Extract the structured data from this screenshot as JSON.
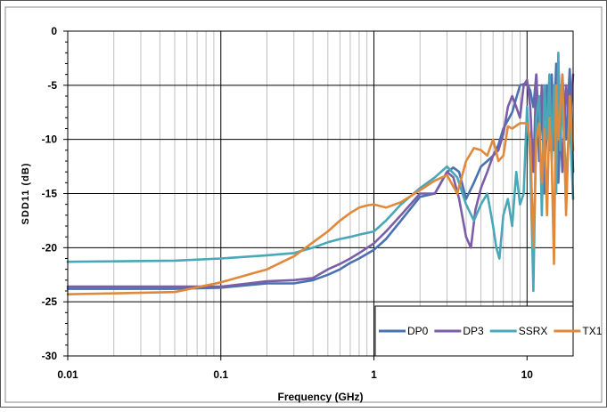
{
  "chart_data": {
    "type": "line",
    "title": "",
    "xlabel": "Frequency (GHz)",
    "ylabel": "SDD11 (dB)",
    "xscale": "log",
    "xlim": [
      0.01,
      20
    ],
    "ylim": [
      -30,
      0
    ],
    "x_ticks": [
      {
        "value": 0.01,
        "label": "0.01"
      },
      {
        "value": 0.1,
        "label": "0.1"
      },
      {
        "value": 1,
        "label": "1"
      },
      {
        "value": 10,
        "label": "10"
      }
    ],
    "y_ticks": [
      {
        "value": 0,
        "label": "0"
      },
      {
        "value": -5,
        "label": "-5"
      },
      {
        "value": -10,
        "label": "-10"
      },
      {
        "value": -15,
        "label": "-15"
      },
      {
        "value": -20,
        "label": "-20"
      },
      {
        "value": -25,
        "label": "-25"
      },
      {
        "value": -30,
        "label": "-30"
      }
    ],
    "grid": true,
    "legend_position": "bottom-right",
    "series": [
      {
        "name": "DP0",
        "color": "#4a72b0",
        "x": [
          0.01,
          0.05,
          0.1,
          0.2,
          0.3,
          0.4,
          0.5,
          0.6,
          0.7,
          0.8,
          1.0,
          1.2,
          1.5,
          2.0,
          2.5,
          3.0,
          3.3,
          3.6,
          4.0,
          4.5,
          5.0,
          5.5,
          6.0,
          6.5,
          7.0,
          8.0,
          9.0,
          10.0,
          10.5,
          11.0,
          11.5,
          12.0,
          12.5,
          13.0,
          13.5,
          14.0,
          14.5,
          15.0,
          15.5,
          16.0,
          17.0,
          18.0,
          19.0,
          20.0
        ],
        "values": [
          -23.8,
          -23.8,
          -23.7,
          -23.3,
          -23.3,
          -23.0,
          -22.5,
          -22.0,
          -21.4,
          -21.0,
          -20.2,
          -19.2,
          -17.5,
          -15.3,
          -15.0,
          -13.0,
          -12.6,
          -13.0,
          -15.5,
          -14.0,
          -12.5,
          -12.0,
          -11.5,
          -10.5,
          -9.0,
          -7.5,
          -5.0,
          -4.8,
          -5.5,
          -7.0,
          -4.0,
          -12.0,
          -6.0,
          -15.0,
          -5.0,
          -11.0,
          -4.0,
          -9.0,
          -3.0,
          -14.0,
          -4.0,
          -10.0,
          -3.5,
          -13.0
        ]
      },
      {
        "name": "DP3",
        "color": "#7b5ea8",
        "x": [
          0.01,
          0.05,
          0.1,
          0.2,
          0.3,
          0.4,
          0.5,
          0.6,
          0.7,
          0.8,
          1.0,
          1.2,
          1.5,
          2.0,
          2.5,
          3.0,
          3.3,
          3.6,
          4.0,
          4.3,
          4.6,
          5.0,
          5.5,
          6.0,
          6.5,
          7.0,
          7.5,
          8.0,
          8.5,
          9.0,
          9.5,
          10.0,
          10.5,
          11.0,
          11.5,
          12.0,
          12.5,
          13.0,
          14.0,
          15.0,
          16.0,
          17.0,
          18.0,
          19.0,
          20.0
        ],
        "values": [
          -23.6,
          -23.6,
          -23.6,
          -23.1,
          -23.0,
          -22.8,
          -22.0,
          -21.5,
          -21.0,
          -20.5,
          -19.6,
          -18.5,
          -17.0,
          -15.0,
          -15.0,
          -13.0,
          -13.5,
          -15.5,
          -19.0,
          -20.0,
          -16.5,
          -14.5,
          -13.0,
          -11.5,
          -11.0,
          -9.5,
          -7.0,
          -6.0,
          -7.0,
          -8.0,
          -5.0,
          -4.5,
          -7.0,
          -13.0,
          -4.0,
          -10.0,
          -5.0,
          -13.0,
          -4.5,
          -11.0,
          -3.0,
          -13.0,
          -5.0,
          -9.0,
          -4.0
        ]
      },
      {
        "name": "SSRX",
        "color": "#49a7b8",
        "x": [
          0.01,
          0.05,
          0.1,
          0.2,
          0.3,
          0.4,
          0.5,
          0.6,
          0.7,
          0.8,
          1.0,
          1.2,
          1.5,
          2.0,
          2.5,
          3.0,
          3.5,
          4.0,
          4.5,
          5.0,
          5.5,
          6.0,
          6.3,
          6.6,
          7.0,
          7.5,
          8.0,
          8.5,
          9.0,
          9.5,
          10.0,
          10.5,
          11.0,
          11.5,
          12.0,
          12.5,
          13.0,
          13.5,
          14.0,
          14.5,
          15.0,
          15.5,
          16.0,
          16.5,
          17.0,
          18.0,
          19.0,
          20.0
        ],
        "values": [
          -21.3,
          -21.2,
          -21.0,
          -20.7,
          -20.5,
          -20.0,
          -19.5,
          -19.2,
          -19.0,
          -18.8,
          -18.5,
          -17.5,
          -16.0,
          -14.5,
          -13.5,
          -12.5,
          -13.5,
          -16.0,
          -17.5,
          -16.0,
          -15.0,
          -18.0,
          -20.0,
          -21.0,
          -17.0,
          -15.5,
          -18.0,
          -13.0,
          -16.0,
          -15.0,
          -7.0,
          -12.0,
          -24.0,
          -8.0,
          -6.0,
          -17.0,
          -5.0,
          -10.0,
          -4.0,
          -12.0,
          -5.0,
          -15.0,
          -2.0,
          -11.0,
          -6.0,
          -14.0,
          -8.0,
          -15.5
        ]
      },
      {
        "name": "TX1",
        "color": "#e0893a",
        "x": [
          0.01,
          0.05,
          0.1,
          0.15,
          0.2,
          0.3,
          0.4,
          0.5,
          0.6,
          0.7,
          0.8,
          0.9,
          1.0,
          1.2,
          1.5,
          2.0,
          2.5,
          3.0,
          3.5,
          4.0,
          4.5,
          5.0,
          5.5,
          6.0,
          6.5,
          7.0,
          7.5,
          8.0,
          9.0,
          10.0,
          10.5,
          11.0,
          11.5,
          12.0,
          12.5,
          13.0,
          13.5,
          14.0,
          14.5,
          15.0,
          15.5,
          16.0,
          17.0,
          18.0,
          19.0,
          20.0
        ],
        "values": [
          -24.3,
          -24.1,
          -23.2,
          -22.5,
          -22.0,
          -20.8,
          -19.5,
          -18.5,
          -17.5,
          -16.8,
          -16.3,
          -16.1,
          -16.0,
          -16.3,
          -15.8,
          -14.7,
          -13.8,
          -13.3,
          -15.0,
          -12.0,
          -10.8,
          -11.0,
          -11.5,
          -10.0,
          -12.0,
          -11.5,
          -8.8,
          -9.0,
          -8.5,
          -8.5,
          -10.0,
          -20.0,
          -10.0,
          -8.5,
          -14.0,
          -9.0,
          -17.0,
          -8.0,
          -12.0,
          -21.5,
          -5.0,
          -10.0,
          -4.0,
          -17.0,
          -6.0,
          -11.0
        ]
      }
    ]
  }
}
